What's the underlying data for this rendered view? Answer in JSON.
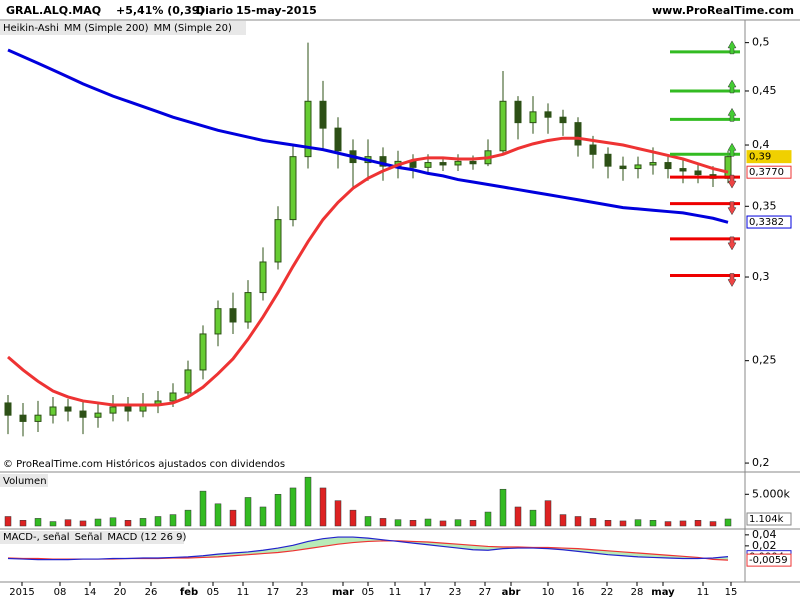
{
  "header": {
    "symbol": "GRAL.ALQ.MAQ",
    "change": "+5,41% (0,39)",
    "period": "Diario",
    "date": "15-may-2015",
    "site": "www.ProRealTime.com"
  },
  "x_labels": [
    "2015",
    "08",
    "14",
    "20",
    "26",
    "feb",
    "05",
    "11",
    "17",
    "23",
    "mar",
    "05",
    "11",
    "17",
    "23",
    "27",
    "abr",
    "10",
    "16",
    "22",
    "28",
    "may",
    "11",
    "15"
  ],
  "chart_data": [
    {
      "type": "candlestick",
      "log": true,
      "ylim": [
        0.197,
        0.523
      ],
      "yticks": [
        {
          "value": 0.5,
          "label": "0,5"
        },
        {
          "value": 0.45,
          "label": "0,45"
        },
        {
          "value": 0.4,
          "label": "0,4"
        },
        {
          "value": 0.35,
          "label": "0,35"
        },
        {
          "value": 0.3,
          "label": "0,3"
        },
        {
          "value": 0.25,
          "label": "0,25"
        },
        {
          "value": 0.2,
          "label": "0,2"
        }
      ],
      "note": "© ProRealTime.com Históricos ajustados con dividendos",
      "series": [
        {
          "name": "Heikin-Ashi",
          "color": "#66cc33",
          "down_color": "#2d5016",
          "open": [
            0.228,
            0.222,
            0.219,
            0.222,
            0.226,
            0.224,
            0.221,
            0.223,
            0.226,
            0.224,
            0.227,
            0.229,
            0.233,
            0.245,
            0.265,
            0.28,
            0.272,
            0.29,
            0.31,
            0.34,
            0.39,
            0.44,
            0.415,
            0.395,
            0.385,
            0.39,
            0.382,
            0.386,
            0.381,
            0.385,
            0.383,
            0.386,
            0.384,
            0.395,
            0.44,
            0.42,
            0.43,
            0.425,
            0.42,
            0.4,
            0.392,
            0.382,
            0.38,
            0.383,
            0.385,
            0.38,
            0.378,
            0.375,
            0.372
          ],
          "close": [
            0.222,
            0.219,
            0.222,
            0.226,
            0.224,
            0.221,
            0.223,
            0.226,
            0.224,
            0.227,
            0.229,
            0.233,
            0.245,
            0.265,
            0.28,
            0.272,
            0.29,
            0.31,
            0.34,
            0.39,
            0.44,
            0.415,
            0.395,
            0.385,
            0.39,
            0.382,
            0.386,
            0.381,
            0.385,
            0.383,
            0.386,
            0.384,
            0.395,
            0.44,
            0.42,
            0.43,
            0.425,
            0.42,
            0.4,
            0.392,
            0.382,
            0.38,
            0.383,
            0.385,
            0.38,
            0.378,
            0.375,
            0.372,
            0.39
          ],
          "low": [
            0.213,
            0.212,
            0.214,
            0.218,
            0.219,
            0.213,
            0.216,
            0.219,
            0.219,
            0.221,
            0.223,
            0.226,
            0.23,
            0.24,
            0.258,
            0.265,
            0.268,
            0.285,
            0.305,
            0.335,
            0.38,
            0.395,
            0.38,
            0.365,
            0.37,
            0.37,
            0.372,
            0.372,
            0.375,
            0.378,
            0.378,
            0.379,
            0.382,
            0.392,
            0.405,
            0.41,
            0.41,
            0.408,
            0.39,
            0.38,
            0.372,
            0.37,
            0.372,
            0.375,
            0.372,
            0.368,
            0.368,
            0.365,
            0.368
          ],
          "high": [
            0.232,
            0.228,
            0.229,
            0.231,
            0.23,
            0.229,
            0.228,
            0.232,
            0.231,
            0.233,
            0.234,
            0.238,
            0.25,
            0.27,
            0.285,
            0.29,
            0.298,
            0.32,
            0.35,
            0.4,
            0.5,
            0.46,
            0.425,
            0.405,
            0.405,
            0.398,
            0.395,
            0.392,
            0.392,
            0.39,
            0.392,
            0.391,
            0.405,
            0.47,
            0.445,
            0.445,
            0.438,
            0.432,
            0.425,
            0.408,
            0.398,
            0.39,
            0.39,
            0.398,
            0.392,
            0.388,
            0.385,
            0.382,
            0.395
          ]
        },
        {
          "name": "MM (Simple 200)",
          "color": "#0000dd",
          "values": [
            0.492,
            0.485,
            0.478,
            0.471,
            0.464,
            0.457,
            0.451,
            0.445,
            0.44,
            0.435,
            0.43,
            0.425,
            0.421,
            0.417,
            0.413,
            0.41,
            0.407,
            0.404,
            0.402,
            0.4,
            0.398,
            0.396,
            0.393,
            0.39,
            0.387,
            0.384,
            0.381,
            0.379,
            0.376,
            0.374,
            0.371,
            0.369,
            0.367,
            0.365,
            0.363,
            0.361,
            0.359,
            0.357,
            0.355,
            0.353,
            0.351,
            0.349,
            0.348,
            0.347,
            0.346,
            0.345,
            0.343,
            0.341,
            0.338
          ]
        },
        {
          "name": "MM (Simple 20)",
          "color": "#ee3333",
          "values": [
            0.252,
            0.245,
            0.239,
            0.234,
            0.231,
            0.229,
            0.228,
            0.227,
            0.227,
            0.227,
            0.227,
            0.228,
            0.231,
            0.236,
            0.243,
            0.251,
            0.262,
            0.275,
            0.29,
            0.307,
            0.324,
            0.34,
            0.353,
            0.364,
            0.372,
            0.378,
            0.383,
            0.387,
            0.389,
            0.389,
            0.388,
            0.388,
            0.389,
            0.392,
            0.397,
            0.401,
            0.404,
            0.406,
            0.406,
            0.404,
            0.402,
            0.4,
            0.397,
            0.394,
            0.391,
            0.388,
            0.384,
            0.38,
            0.377
          ]
        }
      ],
      "levels": [
        {
          "value": 0.49,
          "color": "#33bb22"
        },
        {
          "value": 0.45,
          "color": "#33bb22"
        },
        {
          "value": 0.423,
          "color": "#33bb22"
        },
        {
          "value": 0.392,
          "color": "#33bb22"
        },
        {
          "value": 0.373,
          "color": "#ee0000"
        },
        {
          "value": 0.352,
          "color": "#ee0000"
        },
        {
          "value": 0.326,
          "color": "#ee0000"
        },
        {
          "value": 0.301,
          "color": "#ee0000"
        }
      ],
      "badges": [
        {
          "value": 0.39,
          "label": "0,39",
          "color": "#f0d000"
        },
        {
          "value": 0.377,
          "label": "0,3770",
          "color": "#ee3333"
        },
        {
          "value": 0.3382,
          "label": "0,3382",
          "color": "#0000dd"
        }
      ]
    },
    {
      "type": "bar",
      "title": "Volumen",
      "ylim": [
        0,
        8200
      ],
      "yticks": [
        {
          "value": 5000,
          "label": "5.000k"
        }
      ],
      "values": [
        1500,
        900,
        1200,
        700,
        1000,
        800,
        1100,
        1300,
        900,
        1200,
        1500,
        1800,
        2500,
        5500,
        3500,
        2500,
        4500,
        3000,
        5000,
        6000,
        7700,
        6000,
        4000,
        2500,
        1500,
        1200,
        1000,
        900,
        1100,
        800,
        1000,
        900,
        2200,
        5800,
        3000,
        2500,
        4000,
        1800,
        1500,
        1200,
        900,
        800,
        1000,
        900,
        700,
        800,
        900,
        700,
        1104
      ],
      "up_color": "#33bb22",
      "down_color": "#dd2222",
      "badges": [
        {
          "value": 1104,
          "label": "1.104k"
        }
      ]
    },
    {
      "type": "line",
      "fill_name": "MACD-, señal",
      "ylim": [
        -0.042,
        0.047
      ],
      "yticks": [
        {
          "value": 0.04,
          "label": "0,04"
        },
        {
          "value": 0.02,
          "label": "0,02"
        }
      ],
      "series": [
        {
          "name": "Señal",
          "color": "#ee3333",
          "values": [
            -0.002,
            -0.003,
            -0.003,
            -0.004,
            -0.004,
            -0.004,
            -0.004,
            -0.004,
            -0.003,
            -0.003,
            -0.003,
            -0.002,
            -0.002,
            -0.001,
            0.0,
            0.002,
            0.004,
            0.006,
            0.008,
            0.011,
            0.015,
            0.019,
            0.023,
            0.026,
            0.028,
            0.029,
            0.029,
            0.028,
            0.027,
            0.025,
            0.023,
            0.021,
            0.019,
            0.018,
            0.018,
            0.017,
            0.017,
            0.016,
            0.015,
            0.013,
            0.011,
            0.009,
            0.007,
            0.005,
            0.003,
            0.001,
            -0.001,
            -0.0045,
            -0.0059
          ]
        },
        {
          "name": "MACD (12 26 9)",
          "color": "#2222cc",
          "values": [
            -0.003,
            -0.004,
            -0.005,
            -0.005,
            -0.005,
            -0.004,
            -0.004,
            -0.003,
            -0.003,
            -0.002,
            -0.002,
            -0.001,
            0.0,
            0.002,
            0.005,
            0.007,
            0.009,
            0.012,
            0.016,
            0.021,
            0.028,
            0.033,
            0.036,
            0.036,
            0.034,
            0.031,
            0.028,
            0.025,
            0.022,
            0.019,
            0.016,
            0.013,
            0.012,
            0.015,
            0.016,
            0.016,
            0.015,
            0.013,
            0.01,
            0.007,
            0.004,
            0.002,
            0.0,
            -0.001,
            -0.002,
            -0.003,
            -0.003,
            -0.002,
            0.0004
          ]
        }
      ],
      "badges": [
        {
          "value": 0.0004,
          "label": "0,0004",
          "color": "#2222cc"
        },
        {
          "value": -0.0059,
          "label": "-0,0059",
          "color": "#ee3333"
        }
      ]
    }
  ]
}
